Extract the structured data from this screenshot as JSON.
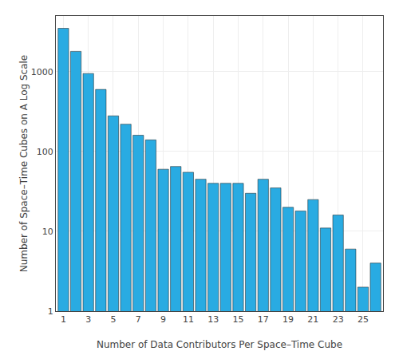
{
  "chart_data": {
    "type": "bar",
    "x": [
      1,
      2,
      3,
      4,
      5,
      6,
      7,
      8,
      9,
      10,
      11,
      12,
      13,
      14,
      15,
      16,
      17,
      18,
      19,
      20,
      21,
      22,
      23,
      24,
      25,
      26
    ],
    "values": [
      3500,
      1800,
      950,
      600,
      280,
      220,
      160,
      140,
      60,
      65,
      55,
      45,
      40,
      40,
      40,
      30,
      45,
      35,
      20,
      18,
      25,
      11,
      16,
      6,
      2,
      4
    ],
    "color": "#29ABE2",
    "xlabel": "Number of Data Contributors Per Space–Time Cube",
    "ylabel": "Number of Space–Time Cubes on A Log Scale",
    "xlim": [
      0.4,
      26.6
    ],
    "xticks": [
      1,
      3,
      5,
      7,
      9,
      11,
      13,
      15,
      17,
      19,
      21,
      23,
      25
    ],
    "ylim": [
      1,
      5000
    ],
    "yticks": [
      1,
      10,
      100,
      1000
    ],
    "log": "y",
    "grid": true
  }
}
